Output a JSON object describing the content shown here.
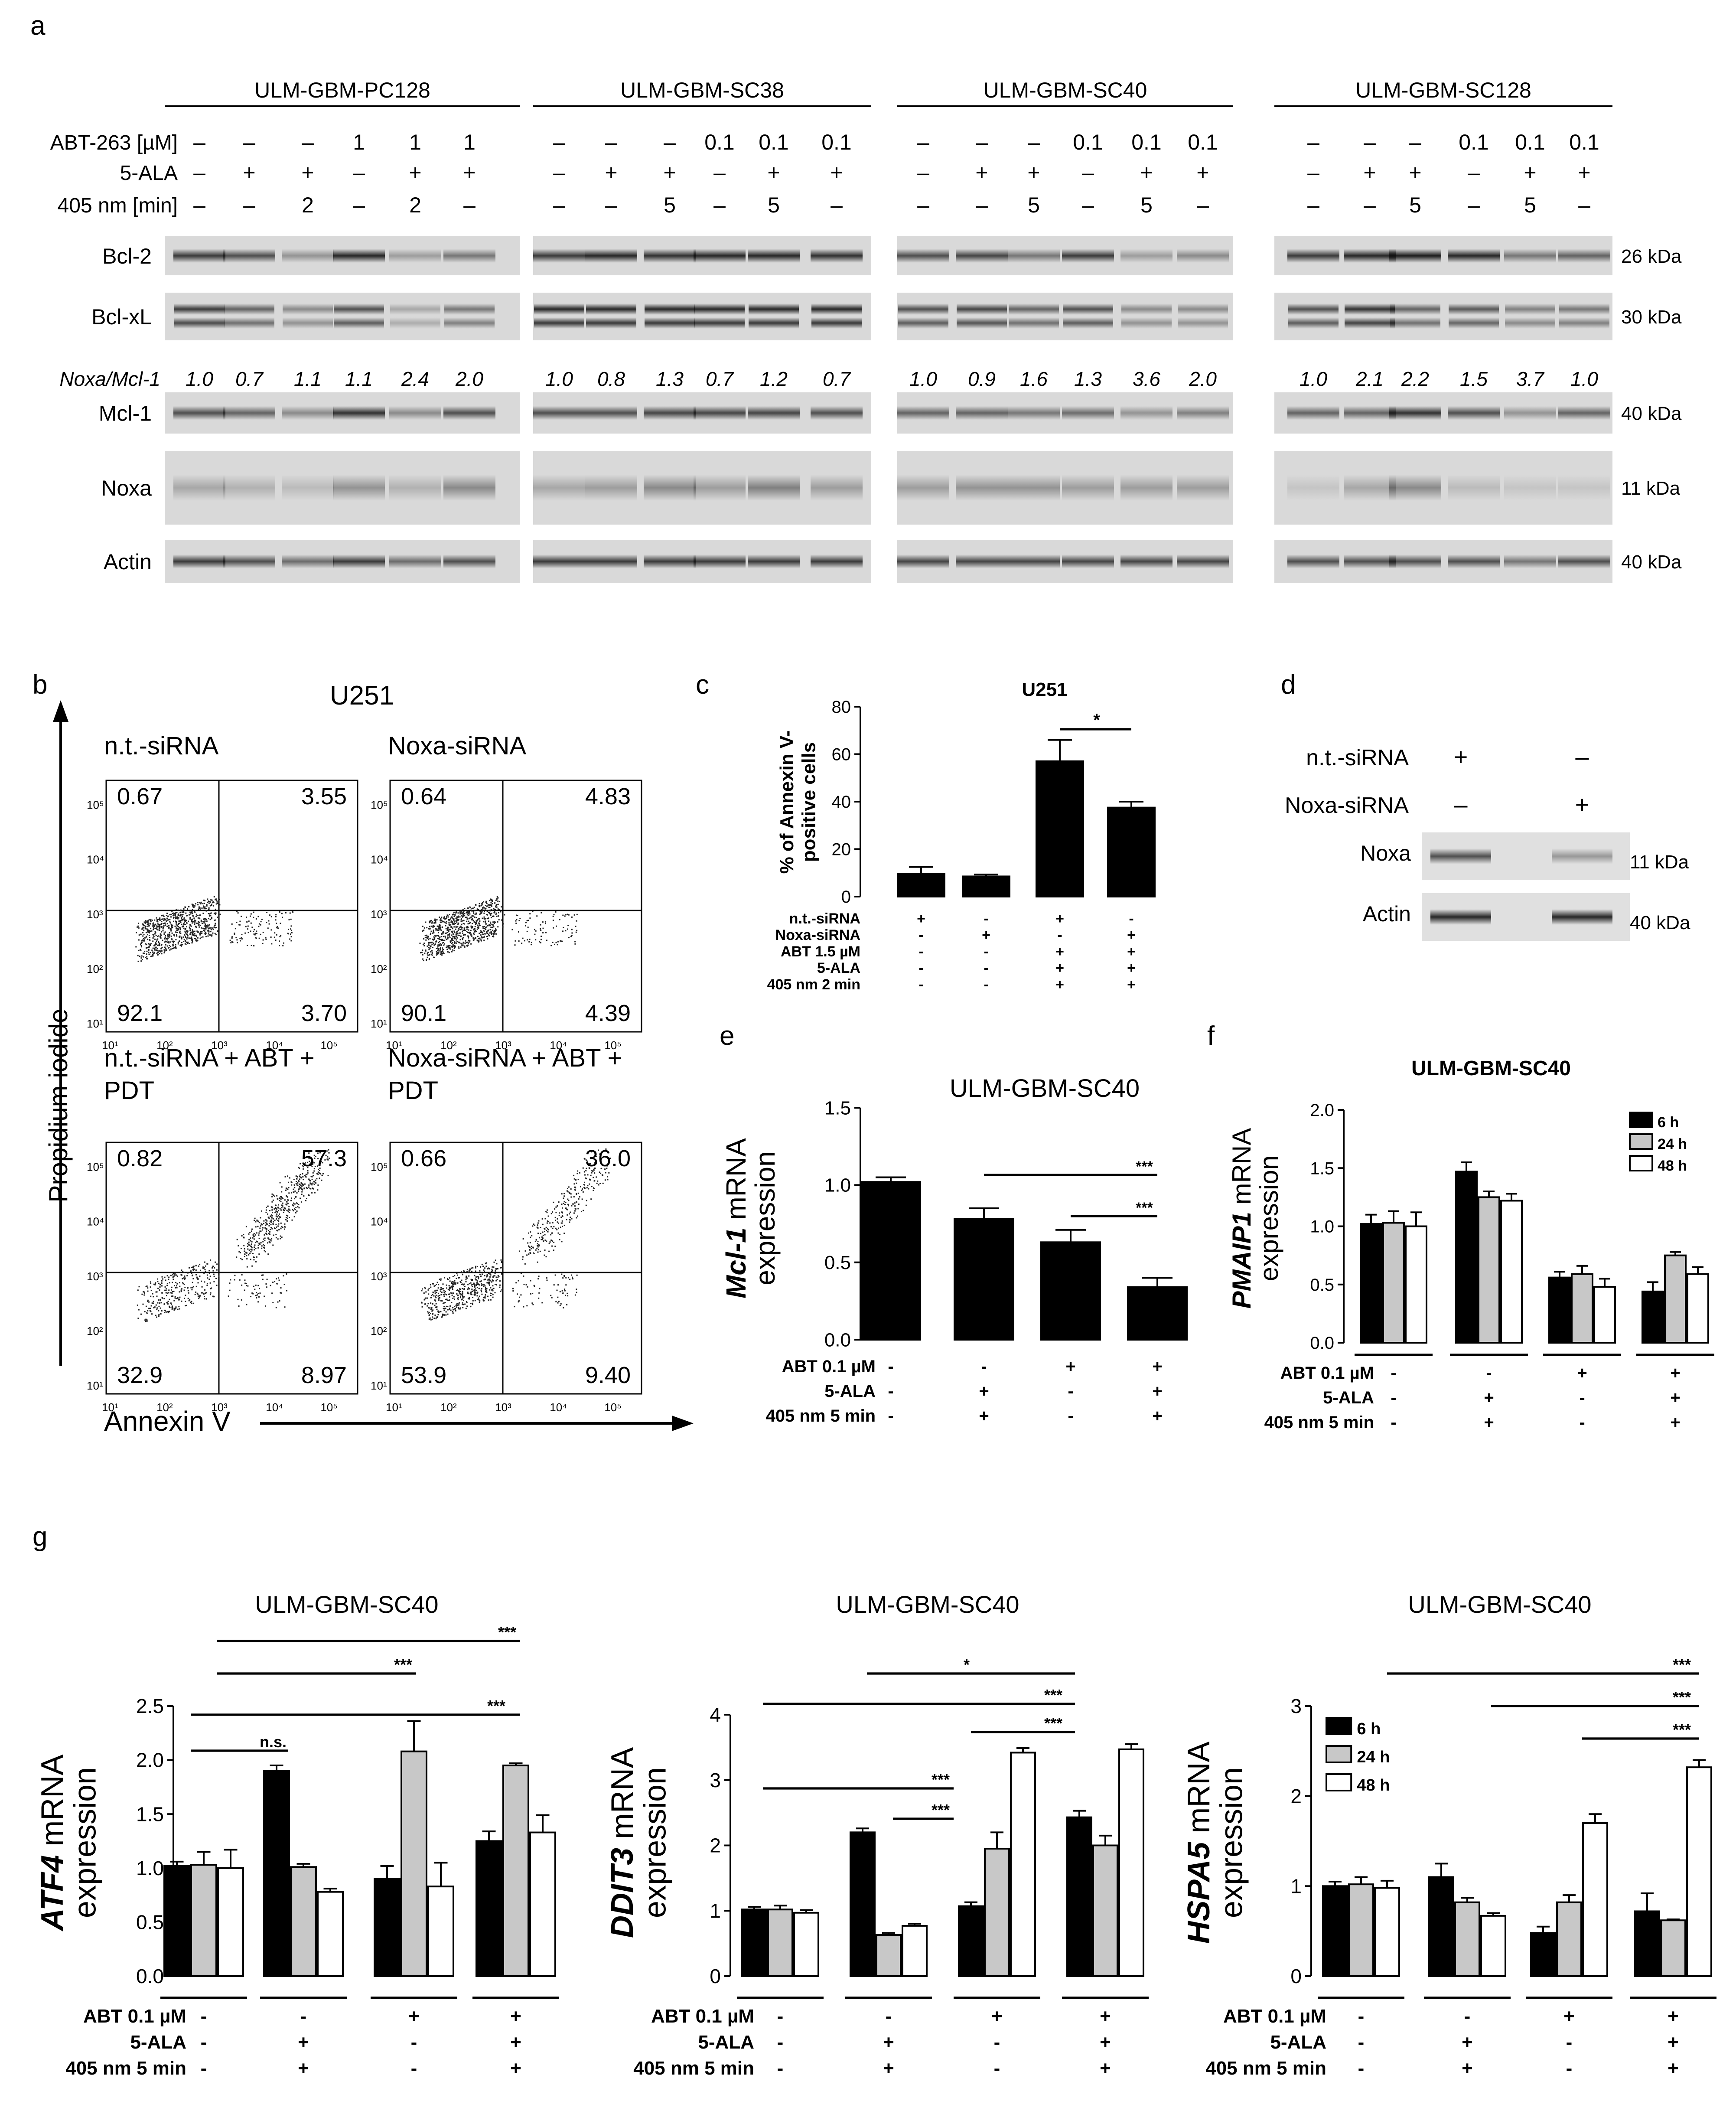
{
  "panel_letters": {
    "a": "a",
    "b": "b",
    "c": "c",
    "d": "d",
    "e": "e",
    "f": "f",
    "g": "g"
  },
  "western_a": {
    "cell_lines": [
      "ULM-GBM-PC128",
      "ULM-GBM-SC38",
      "ULM-GBM-SC40",
      "ULM-GBM-SC128"
    ],
    "treatment_labels": [
      "ABT-263 [µM]",
      "5-ALA",
      "405 nm [min]"
    ],
    "groups": [
      {
        "abt": [
          "–",
          "–",
          "–",
          "1",
          "1",
          "1"
        ],
        "ala": [
          "–",
          "+",
          "+",
          "–",
          "+",
          "+"
        ],
        "nm": [
          "–",
          "–",
          "2",
          "–",
          "2",
          "–"
        ],
        "ratio": [
          "1.0",
          "0.7",
          "1.1",
          "1.1",
          "2.4",
          "2.0"
        ]
      },
      {
        "abt": [
          "–",
          "–",
          "–",
          "0.1",
          "0.1",
          "0.1"
        ],
        "ala": [
          "–",
          "+",
          "+",
          "–",
          "+",
          "+"
        ],
        "nm": [
          "–",
          "–",
          "5",
          "–",
          "5",
          "–"
        ],
        "ratio": [
          "1.0",
          "0.8",
          "1.3",
          "0.7",
          "1.2",
          "0.7"
        ]
      },
      {
        "abt": [
          "–",
          "–",
          "–",
          "0.1",
          "0.1",
          "0.1"
        ],
        "ala": [
          "–",
          "+",
          "+",
          "–",
          "+",
          "+"
        ],
        "nm": [
          "–",
          "–",
          "5",
          "–",
          "5",
          "–"
        ],
        "ratio": [
          "1.0",
          "0.9",
          "1.6",
          "1.3",
          "3.6",
          "2.0"
        ]
      },
      {
        "abt": [
          "–",
          "–",
          "–",
          "0.1",
          "0.1",
          "0.1"
        ],
        "ala": [
          "–",
          "+",
          "+",
          "–",
          "+",
          "+"
        ],
        "nm": [
          "–",
          "–",
          "5",
          "–",
          "5",
          "–"
        ],
        "ratio": [
          "1.0",
          "2.1",
          "2.2",
          "1.5",
          "3.7",
          "1.0"
        ]
      }
    ],
    "ratio_label": "Noxa/Mcl-1",
    "blots": [
      {
        "name": "Bcl-2",
        "kda": "26 kDa"
      },
      {
        "name": "Bcl-xL",
        "kda": "30 kDa"
      },
      {
        "name": "Mcl-1",
        "kda": "40 kDa"
      },
      {
        "name": "Noxa",
        "kda": "11 kDa"
      },
      {
        "name": "Actin",
        "kda": "40 kDa"
      }
    ]
  },
  "flow_b": {
    "title": "U251",
    "y_axis": "Propidium iodide",
    "x_axis": "Annexin V",
    "plots": [
      {
        "title": "n.t.-siRNA",
        "ul": "0.67",
        "ur": "3.55",
        "ll": "92.1",
        "lr": "3.70"
      },
      {
        "title": "Noxa-siRNA",
        "ul": "0.64",
        "ur": "4.83",
        "ll": "90.1",
        "lr": "4.39"
      },
      {
        "title": "n.t.-siRNA + ABT +",
        "title2": "PDT",
        "ul": "0.82",
        "ur": "57.3",
        "ll": "32.9",
        "lr": "8.97"
      },
      {
        "title": "Noxa-siRNA + ABT +",
        "title2": "PDT",
        "ul": "0.66",
        "ur": "36.0",
        "ll": "53.9",
        "lr": "9.40"
      }
    ],
    "ticks": [
      "10¹",
      "10²",
      "10³",
      "10⁴",
      "10⁵"
    ]
  },
  "chart_data": [
    {
      "panel": "c",
      "type": "bar",
      "title": "U251",
      "ylabel": "% of Annexin V-positive cells",
      "ylabel_lines": [
        "% of Annexin V-",
        "positive cells"
      ],
      "ylim": [
        0,
        80
      ],
      "yticks": [
        "0",
        "20",
        "40",
        "60",
        "80"
      ],
      "series": [
        {
          "values": [
            9.5,
            8.5,
            57,
            37.5
          ],
          "errors": [
            3,
            0.8,
            9,
            2.5
          ]
        }
      ],
      "conditions": [
        {
          "label": "n.t.-siRNA",
          "marks": [
            "+",
            "-",
            "+",
            "-"
          ]
        },
        {
          "label": "Noxa-siRNA",
          "marks": [
            "-",
            "+",
            "-",
            "+"
          ]
        },
        {
          "label": "ABT 1.5 µM",
          "marks": [
            "-",
            "-",
            "+",
            "+"
          ]
        },
        {
          "label": "5-ALA",
          "marks": [
            "-",
            "-",
            "+",
            "+"
          ]
        },
        {
          "label": "405 nm 2 min",
          "marks": [
            "-",
            "-",
            "+",
            "+"
          ]
        }
      ],
      "significance": [
        "*"
      ]
    },
    {
      "panel": "e",
      "type": "bar",
      "title": "ULM-GBM-SC40",
      "ylabel_italic": "Mcl-1",
      "ylabel_rest": " mRNA",
      "ylabel2": "expression",
      "ylim": [
        0,
        1.5
      ],
      "yticks": [
        "0.0",
        "0.5",
        "1.0",
        "1.5"
      ],
      "series": [
        {
          "values": [
            1.02,
            0.78,
            0.63,
            0.34
          ],
          "errors": [
            0.03,
            0.07,
            0.08,
            0.06
          ]
        }
      ],
      "conditions": [
        {
          "label": "ABT 0.1 µM",
          "marks": [
            "-",
            "-",
            "+",
            "+"
          ]
        },
        {
          "label": "5-ALA",
          "marks": [
            "-",
            "+",
            "-",
            "+"
          ]
        },
        {
          "label": "405 nm 5 min",
          "marks": [
            "-",
            "+",
            "-",
            "+"
          ]
        }
      ],
      "significance": [
        "***",
        "***"
      ]
    },
    {
      "panel": "f",
      "type": "bar",
      "title": "ULM-GBM-SC40",
      "ylabel_italic": "PMAIP1",
      "ylabel_rest": " mRNA",
      "ylabel2": "expression",
      "ylim": [
        0,
        2.0
      ],
      "yticks": [
        "0.0",
        "0.5",
        "1.0",
        "1.5",
        "2.0"
      ],
      "legend": [
        "6 h",
        "24 h",
        "48 h"
      ],
      "series": [
        {
          "name": "6 h",
          "values": [
            1.02,
            1.47,
            0.56,
            0.44
          ],
          "errors": [
            0.08,
            0.08,
            0.05,
            0.08
          ]
        },
        {
          "name": "24 h",
          "values": [
            1.03,
            1.25,
            0.59,
            0.75
          ],
          "errors": [
            0.1,
            0.05,
            0.07,
            0.03
          ]
        },
        {
          "name": "48 h",
          "values": [
            1.0,
            1.22,
            0.48,
            0.59
          ],
          "errors": [
            0.12,
            0.06,
            0.07,
            0.06
          ]
        }
      ],
      "conditions": [
        {
          "label": "ABT 0.1 µM",
          "marks": [
            "-",
            "-",
            "+",
            "+"
          ]
        },
        {
          "label": "5-ALA",
          "marks": [
            "-",
            "+",
            "-",
            "+"
          ]
        },
        {
          "label": "405 nm 5 min",
          "marks": [
            "-",
            "+",
            "-",
            "+"
          ]
        }
      ]
    },
    {
      "panel": "g1",
      "type": "bar",
      "title": "ULM-GBM-SC40",
      "ylabel_italic": "ATF4",
      "ylabel_rest": " mRNA",
      "ylabel2": "expression",
      "ylim": [
        0,
        2.5
      ],
      "yticks": [
        "0.0",
        "0.5",
        "1.0",
        "1.5",
        "2.0",
        "2.5"
      ],
      "series": [
        {
          "name": "6 h",
          "values": [
            1.02,
            1.9,
            0.9,
            1.25
          ],
          "errors": [
            0.04,
            0.05,
            0.12,
            0.09
          ]
        },
        {
          "name": "24 h",
          "values": [
            1.03,
            1.01,
            2.08,
            1.95
          ],
          "errors": [
            0.12,
            0.03,
            0.28,
            0.02
          ]
        },
        {
          "name": "48 h",
          "values": [
            1.0,
            0.78,
            0.83,
            1.33
          ],
          "errors": [
            0.17,
            0.03,
            0.22,
            0.16
          ]
        }
      ],
      "conditions": [
        {
          "label": "ABT 0.1 µM",
          "marks": [
            "-",
            "-",
            "+",
            "+"
          ]
        },
        {
          "label": "5-ALA",
          "marks": [
            "-",
            "+",
            "-",
            "+"
          ]
        },
        {
          "label": "405 nm 5 min",
          "marks": [
            "-",
            "+",
            "-",
            "+"
          ]
        }
      ],
      "significance": [
        "***",
        "***",
        "***",
        "n.s."
      ]
    },
    {
      "panel": "g2",
      "type": "bar",
      "title": "ULM-GBM-SC40",
      "ylabel_italic": "DDIT3",
      "ylabel_rest": " mRNA",
      "ylabel2": "expression",
      "ylim": [
        0,
        4
      ],
      "yticks": [
        "0",
        "1",
        "2",
        "3",
        "4"
      ],
      "series": [
        {
          "name": "6 h",
          "values": [
            1.02,
            2.2,
            1.07,
            2.43
          ],
          "errors": [
            0.04,
            0.06,
            0.06,
            0.1
          ]
        },
        {
          "name": "24 h",
          "values": [
            1.02,
            0.63,
            1.95,
            2.0
          ],
          "errors": [
            0.06,
            0.03,
            0.25,
            0.15
          ]
        },
        {
          "name": "48 h",
          "values": [
            0.97,
            0.77,
            3.42,
            3.47
          ],
          "errors": [
            0.04,
            0.03,
            0.07,
            0.08
          ]
        }
      ],
      "conditions": [
        {
          "label": "ABT 0.1 µM",
          "marks": [
            "-",
            "-",
            "+",
            "+"
          ]
        },
        {
          "label": "5-ALA",
          "marks": [
            "-",
            "+",
            "-",
            "+"
          ]
        },
        {
          "label": "405 nm 5 min",
          "marks": [
            "-",
            "+",
            "-",
            "+"
          ]
        }
      ],
      "significance": [
        "*",
        "***",
        "***",
        "***",
        "***"
      ]
    },
    {
      "panel": "g3",
      "type": "bar",
      "title": "ULM-GBM-SC40",
      "ylabel_italic": "HSPA5",
      "ylabel_rest": " mRNA",
      "ylabel2": "expression",
      "ylim": [
        0,
        3
      ],
      "yticks": [
        "0",
        "1",
        "2",
        "3"
      ],
      "legend": [
        "6 h",
        "24 h",
        "48 h"
      ],
      "series": [
        {
          "name": "6 h",
          "values": [
            1.0,
            1.1,
            0.48,
            0.72
          ],
          "errors": [
            0.05,
            0.15,
            0.07,
            0.2
          ]
        },
        {
          "name": "24 h",
          "values": [
            1.02,
            0.82,
            0.82,
            0.62
          ],
          "errors": [
            0.08,
            0.05,
            0.08,
            0.01
          ]
        },
        {
          "name": "48 h",
          "values": [
            0.98,
            0.67,
            1.7,
            2.32
          ],
          "errors": [
            0.08,
            0.03,
            0.1,
            0.08
          ]
        }
      ],
      "conditions": [
        {
          "label": "ABT 0.1 µM",
          "marks": [
            "-",
            "-",
            "+",
            "+"
          ]
        },
        {
          "label": "5-ALA",
          "marks": [
            "-",
            "+",
            "-",
            "+"
          ]
        },
        {
          "label": "405 nm 5 min",
          "marks": [
            "-",
            "+",
            "-",
            "+"
          ]
        }
      ],
      "significance": [
        "***",
        "***",
        "***"
      ]
    }
  ],
  "blot_d": {
    "rows": [
      {
        "label": "n.t.-siRNA",
        "marks": [
          "+",
          "–"
        ]
      },
      {
        "label": "Noxa-siRNA",
        "marks": [
          "–",
          "+"
        ]
      }
    ],
    "blots": [
      {
        "name": "Noxa",
        "kda": "11 kDa"
      },
      {
        "name": "Actin",
        "kda": "40 kDa"
      }
    ]
  }
}
